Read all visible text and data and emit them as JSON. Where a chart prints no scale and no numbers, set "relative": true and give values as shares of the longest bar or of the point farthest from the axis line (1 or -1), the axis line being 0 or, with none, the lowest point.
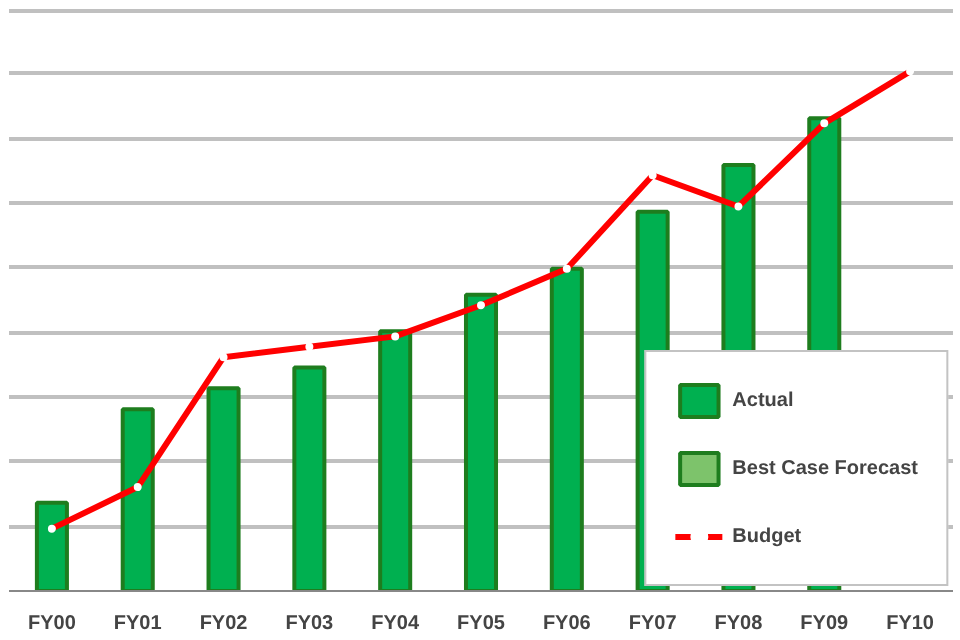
{
  "chart_data": {
    "type": "bar",
    "relative": true,
    "categories": [
      "FY00",
      "FY01",
      "FY02",
      "FY03",
      "FY04",
      "FY05",
      "FY06",
      "FY07",
      "FY08",
      "FY09",
      "FY10"
    ],
    "series": [
      {
        "name": "Actual",
        "color": "#00b050",
        "values": [
          0.17,
          0.35,
          0.39,
          0.43,
          0.5,
          0.57,
          0.62,
          0.73,
          0.82,
          0.91,
          null
        ]
      },
      {
        "name": "Best Case Forecast",
        "color": "#7dc36b",
        "values": [
          null,
          null,
          null,
          null,
          null,
          null,
          null,
          null,
          null,
          null,
          null
        ]
      },
      {
        "name": "Budget",
        "type": "line",
        "color": "#ff0000",
        "values": [
          0.12,
          0.2,
          0.45,
          0.47,
          0.49,
          0.55,
          0.62,
          0.8,
          0.74,
          0.9,
          1.0
        ],
        "marker": "circle",
        "line_style": "solid"
      }
    ],
    "grid": "y",
    "legend": "bottom right",
    "tick_labels": "x"
  }
}
